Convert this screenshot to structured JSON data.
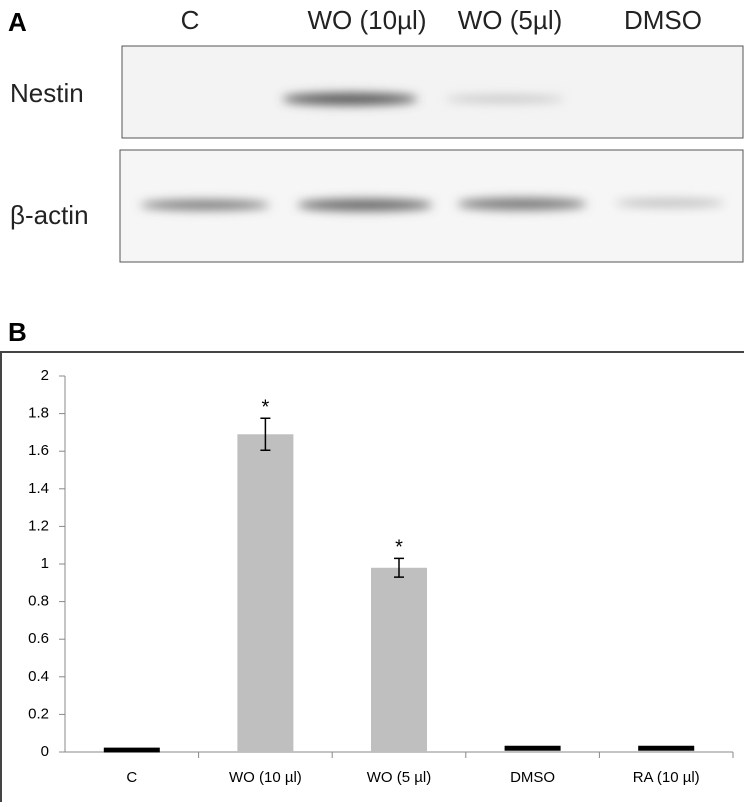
{
  "panel_a": {
    "label": "A",
    "lanes": [
      "C",
      "WO (10µl)",
      "WO (5µl)",
      "DMSO"
    ],
    "rows": [
      "Nestin",
      "β-actin"
    ]
  },
  "chart_data": {
    "type": "bar",
    "panel_label": "B",
    "categories": [
      "C",
      "WO (10 µl)",
      "WO (5 µl)",
      "DMSO",
      "RA (10 µl)"
    ],
    "values": [
      0.01,
      1.69,
      0.98,
      0.02,
      0.02
    ],
    "errors": [
      0.005,
      0.085,
      0.05,
      0.005,
      0.005
    ],
    "significance": [
      null,
      "*",
      "*",
      null,
      null
    ],
    "color": "#bfbfbf",
    "ylim": [
      0,
      2
    ],
    "yticks": [
      0,
      0.2,
      0.4,
      0.6,
      0.8,
      1,
      1.2,
      1.4,
      1.6,
      1.8,
      2
    ]
  }
}
